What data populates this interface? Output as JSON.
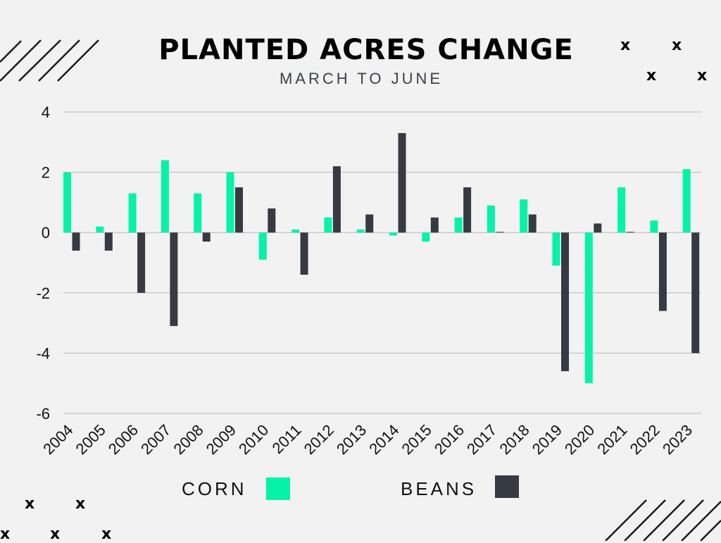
{
  "colors": {
    "corn": "#06f2a8",
    "beans": "#363a42",
    "grid": "#b8b8b8",
    "text": "#111111",
    "accent": "#06f2a8"
  },
  "legend": {
    "corn_label": "CORN",
    "beans_label": "BEANS"
  },
  "decorations": {
    "x_glyph": "x"
  },
  "chart_data": {
    "type": "bar",
    "title": "PLANTED ACRES CHANGE",
    "subtitle": "MARCH TO JUNE",
    "xlabel": "",
    "ylabel": "",
    "ylim": [
      -6,
      4
    ],
    "yticks": [
      4,
      2,
      0,
      -2,
      -4,
      -6
    ],
    "grid": true,
    "categories": [
      "2004",
      "2005",
      "2006",
      "2007",
      "2008",
      "2009",
      "2010",
      "2011",
      "2012",
      "2013",
      "2014",
      "2015",
      "2016",
      "2017",
      "2018",
      "2019",
      "2020",
      "2021",
      "2022",
      "2023"
    ],
    "series": [
      {
        "name": "CORN",
        "values": [
          2.0,
          0.2,
          1.3,
          2.4,
          1.3,
          2.0,
          -0.9,
          0.1,
          0.5,
          0.1,
          -0.1,
          -0.3,
          0.5,
          0.9,
          1.1,
          -1.1,
          -5.0,
          1.5,
          0.4,
          2.1
        ]
      },
      {
        "name": "BEANS",
        "values": [
          -0.6,
          -0.6,
          -2.0,
          -3.1,
          -0.3,
          1.5,
          0.8,
          -1.4,
          2.2,
          0.6,
          3.3,
          0.5,
          1.5,
          0.02,
          0.6,
          -4.6,
          0.3,
          0.02,
          -2.6,
          -4.0
        ]
      }
    ]
  }
}
